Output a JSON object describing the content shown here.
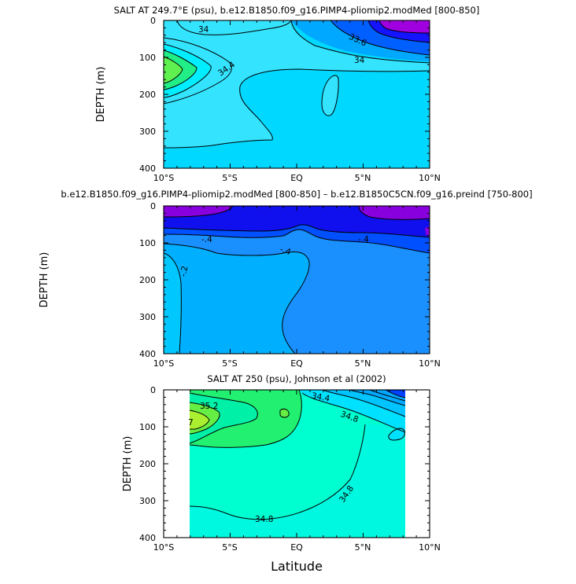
{
  "chart_data": [
    {
      "type": "contour",
      "title": "SALT AT 249.7°E (psu), b.e12.B1850.f09_g16.PIMP4-pliomip2.modMed [800-850]",
      "xlabel": "",
      "ylabel": "DEPTH (m)",
      "xlim": [
        -10,
        10
      ],
      "ylim": [
        400,
        0
      ],
      "xticks": [
        "10°S",
        "5°S",
        "EQ",
        "5°N",
        "10°N"
      ],
      "yticks": [
        "0",
        "100",
        "200",
        "300",
        "400"
      ],
      "contour_labels": [
        "34",
        "34.4",
        "33.6",
        "34"
      ],
      "fill_colors": [
        "#00d8ff",
        "#34e4ff",
        "#00a8ff",
        "#0060ff",
        "#1414ff",
        "#a000e0",
        "#7a2ad4",
        "#22ee88",
        "#60f050"
      ]
    },
    {
      "type": "contour",
      "title": "b.e12.B1850.f09_g16.PIMP4-pliomip2.modMed [800-850] – b.e12.B1850C5CN.f09_g16.preind [750-800]",
      "xlabel": "",
      "ylabel": "DEPTH (m)",
      "xlim": [
        -10,
        10
      ],
      "ylim": [
        400,
        0
      ],
      "xticks": [
        "10°S",
        "5°S",
        "EQ",
        "5°N",
        "10°N"
      ],
      "yticks": [
        "0",
        "100",
        "200",
        "300",
        "400"
      ],
      "contour_labels": [
        "-.4",
        "-.4",
        "-.4",
        "-.2"
      ],
      "fill_colors": [
        "#00c8ff",
        "#00b0ff",
        "#1a90ff",
        "#0050ff",
        "#1010ee",
        "#8800dd"
      ]
    },
    {
      "type": "contour",
      "title": "SALT AT 250 (psu), Johnson et al (2002)",
      "xlabel": "Latitude",
      "ylabel": "DEPTH (m)",
      "xlim": [
        -10,
        10
      ],
      "ylim": [
        400,
        0
      ],
      "xticks": [
        "10°S",
        "5°S",
        "EQ",
        "5°N",
        "10°N"
      ],
      "yticks": [
        "0",
        "100",
        "200",
        "300",
        "400"
      ],
      "contour_labels": [
        "35.2",
        "34.4",
        "34.8",
        "34.8",
        "34.8",
        "7"
      ],
      "fill_colors": [
        "#00ffd0",
        "#00f0a8",
        "#22f070",
        "#66ee44",
        "#aaf030",
        "#00e0ff",
        "#00a8ff",
        "#0040ff"
      ]
    }
  ]
}
